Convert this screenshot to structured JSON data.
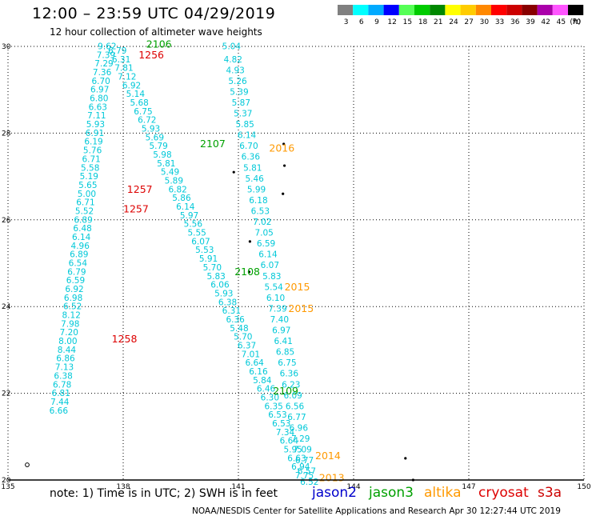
{
  "title": "12:00 – 23:59 UTC 04/29/2019",
  "subtitle": "12 hour collection of altimeter wave heights",
  "note": "note:  1) Time is in UTC; 2) SWH is in feet",
  "credit": "NOAA/NESDIS Center for Satellite Applications and Research    Apr 30 12:27:44 UTC 2019",
  "legend": {
    "unit": "(ft)",
    "bins": [
      {
        "label": "3",
        "color": "#808080"
      },
      {
        "label": "6",
        "color": "#00ffff"
      },
      {
        "label": "9",
        "color": "#00aaff"
      },
      {
        "label": "12",
        "color": "#0000ff"
      },
      {
        "label": "15",
        "color": "#55ff55"
      },
      {
        "label": "18",
        "color": "#00cc00"
      },
      {
        "label": "21",
        "color": "#008800"
      },
      {
        "label": "24",
        "color": "#ffff00"
      },
      {
        "label": "27",
        "color": "#ffcc00"
      },
      {
        "label": "30",
        "color": "#ff8800"
      },
      {
        "label": "33",
        "color": "#ff0000"
      },
      {
        "label": "36",
        "color": "#cc0000"
      },
      {
        "label": "39",
        "color": "#880000"
      },
      {
        "label": "42",
        "color": "#aa00aa"
      },
      {
        "label": "45",
        "color": "#ff55ff"
      },
      {
        "label": "70",
        "color": "#000000"
      }
    ]
  },
  "satellites": [
    {
      "name": "jason2",
      "color": "#0000cc"
    },
    {
      "name": "jason3",
      "color": "#00a000"
    },
    {
      "name": "altika",
      "color": "#ff9900"
    },
    {
      "name": "cryosat",
      "color": "#dd0000"
    },
    {
      "name": "s3a",
      "color": "#cc0000"
    }
  ],
  "axes": {
    "lon_ticks": [
      "135",
      "138",
      "141",
      "144",
      "147",
      "150"
    ],
    "lat_ticks": [
      "20",
      "22",
      "24",
      "26",
      "28",
      "30"
    ]
  },
  "track_labels": [
    {
      "text": "2106",
      "lon": 138.6,
      "lat": 30.05,
      "sat": "jason3"
    },
    {
      "text": "1256",
      "lon": 138.4,
      "lat": 29.8,
      "sat": "cryosat"
    },
    {
      "text": "2107",
      "lon": 140.0,
      "lat": 27.75,
      "sat": "jason3"
    },
    {
      "text": "2016",
      "lon": 141.8,
      "lat": 27.65,
      "sat": "altika"
    },
    {
      "text": "1257",
      "lon": 138.1,
      "lat": 26.7,
      "sat": "cryosat"
    },
    {
      "text": "1257",
      "lon": 138.0,
      "lat": 26.25,
      "sat": "cryosat"
    },
    {
      "text": "2108",
      "lon": 140.9,
      "lat": 24.8,
      "sat": "jason3"
    },
    {
      "text": "2015",
      "lon": 142.2,
      "lat": 24.45,
      "sat": "altika"
    },
    {
      "text": "2015",
      "lon": 142.3,
      "lat": 23.95,
      "sat": "altika"
    },
    {
      "text": "1258",
      "lon": 137.7,
      "lat": 23.25,
      "sat": "cryosat"
    },
    {
      "text": "2109",
      "lon": 141.9,
      "lat": 22.05,
      "sat": "jason3"
    },
    {
      "text": "2014",
      "lon": 143.0,
      "lat": 20.55,
      "sat": "altika"
    },
    {
      "text": "2013",
      "lon": 143.1,
      "lat": 20.05,
      "sat": "altika"
    }
  ],
  "tracks": [
    {
      "name": "track-a",
      "points": [
        {
          "lon": 137.58,
          "lat": 30.0,
          "swh": "9.62"
        },
        {
          "lon": 137.55,
          "lat": 29.8,
          "swh": "7.39"
        },
        {
          "lon": 137.5,
          "lat": 29.6,
          "swh": "7.29"
        },
        {
          "lon": 137.45,
          "lat": 29.4,
          "swh": "7.36"
        },
        {
          "lon": 137.42,
          "lat": 29.2,
          "swh": "6.70"
        },
        {
          "lon": 137.39,
          "lat": 29.0,
          "swh": "6.97"
        },
        {
          "lon": 137.37,
          "lat": 28.8,
          "swh": "6.80"
        },
        {
          "lon": 137.34,
          "lat": 28.6,
          "swh": "6.63"
        },
        {
          "lon": 137.31,
          "lat": 28.4,
          "swh": "7.11"
        },
        {
          "lon": 137.28,
          "lat": 28.2,
          "swh": "5.93"
        },
        {
          "lon": 137.26,
          "lat": 28.0,
          "swh": "6.91"
        },
        {
          "lon": 137.23,
          "lat": 27.8,
          "swh": "6.19"
        },
        {
          "lon": 137.2,
          "lat": 27.6,
          "swh": "5.76"
        },
        {
          "lon": 137.17,
          "lat": 27.4,
          "swh": "6.71"
        },
        {
          "lon": 137.14,
          "lat": 27.2,
          "swh": "5.58"
        },
        {
          "lon": 137.11,
          "lat": 27.0,
          "swh": "5.19"
        },
        {
          "lon": 137.08,
          "lat": 26.8,
          "swh": "5.65"
        },
        {
          "lon": 137.05,
          "lat": 26.6,
          "swh": "5.00"
        },
        {
          "lon": 137.02,
          "lat": 26.4,
          "swh": "6.71"
        },
        {
          "lon": 136.99,
          "lat": 26.2,
          "swh": "5.52"
        },
        {
          "lon": 136.96,
          "lat": 26.0,
          "swh": "6.89"
        },
        {
          "lon": 136.94,
          "lat": 25.8,
          "swh": "6.48"
        },
        {
          "lon": 136.91,
          "lat": 25.6,
          "swh": "6.14"
        },
        {
          "lon": 136.88,
          "lat": 25.4,
          "swh": "4.96"
        },
        {
          "lon": 136.85,
          "lat": 25.2,
          "swh": "6.89"
        },
        {
          "lon": 136.82,
          "lat": 25.0,
          "swh": "6.54"
        },
        {
          "lon": 136.79,
          "lat": 24.8,
          "swh": "6.79"
        },
        {
          "lon": 136.76,
          "lat": 24.6,
          "swh": "6.59"
        },
        {
          "lon": 136.73,
          "lat": 24.4,
          "swh": "6.92"
        },
        {
          "lon": 136.7,
          "lat": 24.2,
          "swh": "6.98"
        },
        {
          "lon": 136.68,
          "lat": 24.0,
          "swh": "6.52"
        },
        {
          "lon": 136.65,
          "lat": 23.8,
          "swh": "8.12"
        },
        {
          "lon": 136.62,
          "lat": 23.6,
          "swh": "7.98"
        },
        {
          "lon": 136.59,
          "lat": 23.4,
          "swh": "7.20"
        },
        {
          "lon": 136.56,
          "lat": 23.2,
          "swh": "8.00"
        },
        {
          "lon": 136.53,
          "lat": 23.0,
          "swh": "8.44"
        },
        {
          "lon": 136.5,
          "lat": 22.8,
          "swh": "6.86"
        },
        {
          "lon": 136.47,
          "lat": 22.6,
          "swh": "7.13"
        },
        {
          "lon": 136.44,
          "lat": 22.4,
          "swh": "6.38"
        },
        {
          "lon": 136.41,
          "lat": 22.2,
          "swh": "6.78"
        },
        {
          "lon": 136.38,
          "lat": 22.0,
          "swh": "6.81"
        },
        {
          "lon": 136.35,
          "lat": 21.8,
          "swh": "7.44"
        },
        {
          "lon": 136.32,
          "lat": 21.6,
          "swh": "6.66"
        }
      ]
    },
    {
      "name": "track-b",
      "points": [
        {
          "lon": 137.85,
          "lat": 29.9,
          "swh": "6.79"
        },
        {
          "lon": 137.95,
          "lat": 29.7,
          "swh": "6.31"
        },
        {
          "lon": 138.02,
          "lat": 29.5,
          "swh": "7.81"
        },
        {
          "lon": 138.1,
          "lat": 29.3,
          "swh": "7.12"
        },
        {
          "lon": 138.22,
          "lat": 29.1,
          "swh": "6.92"
        },
        {
          "lon": 138.32,
          "lat": 28.9,
          "swh": "5.14"
        },
        {
          "lon": 138.42,
          "lat": 28.7,
          "swh": "5.68"
        },
        {
          "lon": 138.52,
          "lat": 28.5,
          "swh": "6.75"
        },
        {
          "lon": 138.62,
          "lat": 28.3,
          "swh": "6.72"
        },
        {
          "lon": 138.72,
          "lat": 28.1,
          "swh": "5.93"
        },
        {
          "lon": 138.82,
          "lat": 27.9,
          "swh": "5.69"
        },
        {
          "lon": 138.92,
          "lat": 27.7,
          "swh": "5.79"
        },
        {
          "lon": 139.02,
          "lat": 27.5,
          "swh": "5.98"
        },
        {
          "lon": 139.12,
          "lat": 27.3,
          "swh": "5.81"
        },
        {
          "lon": 139.22,
          "lat": 27.1,
          "swh": "5.49"
        },
        {
          "lon": 139.32,
          "lat": 26.9,
          "swh": "5.89"
        },
        {
          "lon": 139.42,
          "lat": 26.7,
          "swh": "6.82"
        },
        {
          "lon": 139.52,
          "lat": 26.5,
          "swh": "5.86"
        },
        {
          "lon": 139.62,
          "lat": 26.3,
          "swh": "6.14"
        },
        {
          "lon": 139.72,
          "lat": 26.1,
          "swh": "5.97"
        },
        {
          "lon": 139.82,
          "lat": 25.9,
          "swh": "5.56"
        },
        {
          "lon": 139.92,
          "lat": 25.7,
          "swh": "5.55"
        },
        {
          "lon": 140.02,
          "lat": 25.5,
          "swh": "6.07"
        },
        {
          "lon": 140.12,
          "lat": 25.3,
          "swh": "5.53"
        },
        {
          "lon": 140.22,
          "lat": 25.1,
          "swh": "5.91"
        },
        {
          "lon": 140.32,
          "lat": 24.9,
          "swh": "5.70"
        },
        {
          "lon": 140.42,
          "lat": 24.7,
          "swh": "5.83"
        },
        {
          "lon": 140.52,
          "lat": 24.5,
          "swh": "6.06"
        },
        {
          "lon": 140.62,
          "lat": 24.3,
          "swh": "5.93"
        },
        {
          "lon": 140.72,
          "lat": 24.1,
          "swh": "6.38"
        },
        {
          "lon": 140.82,
          "lat": 23.9,
          "swh": "6.31"
        },
        {
          "lon": 140.92,
          "lat": 23.7,
          "swh": "6.36"
        },
        {
          "lon": 141.02,
          "lat": 23.5,
          "swh": "5.48"
        },
        {
          "lon": 141.12,
          "lat": 23.3,
          "swh": "5.70"
        },
        {
          "lon": 141.22,
          "lat": 23.1,
          "swh": "6.37"
        },
        {
          "lon": 141.32,
          "lat": 22.9,
          "swh": "7.01"
        },
        {
          "lon": 141.42,
          "lat": 22.7,
          "swh": "6.64"
        },
        {
          "lon": 141.52,
          "lat": 22.5,
          "swh": "6.16"
        },
        {
          "lon": 141.62,
          "lat": 22.3,
          "swh": "5.84"
        },
        {
          "lon": 141.72,
          "lat": 22.1,
          "swh": "6.46"
        },
        {
          "lon": 141.82,
          "lat": 21.9,
          "swh": "6.30"
        },
        {
          "lon": 141.92,
          "lat": 21.7,
          "swh": "6.35"
        },
        {
          "lon": 142.02,
          "lat": 21.5,
          "swh": "6.53"
        },
        {
          "lon": 142.12,
          "lat": 21.3,
          "swh": "6.53"
        },
        {
          "lon": 142.22,
          "lat": 21.1,
          "swh": "7.34"
        },
        {
          "lon": 142.32,
          "lat": 20.9,
          "swh": "6.64"
        },
        {
          "lon": 142.42,
          "lat": 20.7,
          "swh": "5.95"
        },
        {
          "lon": 142.52,
          "lat": 20.5,
          "swh": "6.63"
        },
        {
          "lon": 142.62,
          "lat": 20.3,
          "swh": "6.94"
        },
        {
          "lon": 142.72,
          "lat": 20.1,
          "swh": "7.75"
        }
      ]
    },
    {
      "name": "track-c",
      "points": [
        {
          "lon": 140.82,
          "lat": 30.0,
          "swh": "5.04"
        },
        {
          "lon": 140.86,
          "lat": 29.7,
          "swh": "4.82"
        },
        {
          "lon": 140.92,
          "lat": 29.45,
          "swh": "4.93"
        },
        {
          "lon": 140.98,
          "lat": 29.2,
          "swh": "5.26"
        },
        {
          "lon": 141.02,
          "lat": 28.95,
          "swh": "5.39"
        },
        {
          "lon": 141.07,
          "lat": 28.7,
          "swh": "5.87"
        },
        {
          "lon": 141.12,
          "lat": 28.45,
          "swh": "5.37"
        },
        {
          "lon": 141.17,
          "lat": 28.2,
          "swh": "5.85"
        },
        {
          "lon": 141.22,
          "lat": 27.95,
          "swh": "6.14"
        },
        {
          "lon": 141.27,
          "lat": 27.7,
          "swh": "6.70"
        },
        {
          "lon": 141.32,
          "lat": 27.45,
          "swh": "6.36"
        },
        {
          "lon": 141.37,
          "lat": 27.2,
          "swh": "5.81"
        },
        {
          "lon": 141.42,
          "lat": 26.95,
          "swh": "5.46"
        },
        {
          "lon": 141.47,
          "lat": 26.7,
          "swh": "5.99"
        },
        {
          "lon": 141.52,
          "lat": 26.45,
          "swh": "6.18"
        },
        {
          "lon": 141.57,
          "lat": 26.2,
          "swh": "6.53"
        },
        {
          "lon": 141.62,
          "lat": 25.95,
          "swh": "7.02"
        },
        {
          "lon": 141.67,
          "lat": 25.7,
          "swh": "7.05"
        },
        {
          "lon": 141.72,
          "lat": 25.45,
          "swh": "6.59"
        },
        {
          "lon": 141.77,
          "lat": 25.2,
          "swh": "6.14"
        },
        {
          "lon": 141.82,
          "lat": 24.95,
          "swh": "6.07"
        },
        {
          "lon": 141.87,
          "lat": 24.7,
          "swh": "5.83"
        },
        {
          "lon": 141.92,
          "lat": 24.45,
          "swh": "5.54"
        },
        {
          "lon": 141.97,
          "lat": 24.2,
          "swh": "6.10"
        },
        {
          "lon": 142.02,
          "lat": 23.95,
          "swh": "7.39"
        },
        {
          "lon": 142.07,
          "lat": 23.7,
          "swh": "7.40"
        },
        {
          "lon": 142.12,
          "lat": 23.45,
          "swh": "6.97"
        },
        {
          "lon": 142.17,
          "lat": 23.2,
          "swh": "6.41"
        },
        {
          "lon": 142.22,
          "lat": 22.95,
          "swh": "6.85"
        },
        {
          "lon": 142.27,
          "lat": 22.7,
          "swh": "6.75"
        },
        {
          "lon": 142.32,
          "lat": 22.45,
          "swh": "6.36"
        },
        {
          "lon": 142.37,
          "lat": 22.2,
          "swh": "6.23"
        },
        {
          "lon": 142.42,
          "lat": 21.95,
          "swh": "6.09"
        },
        {
          "lon": 142.47,
          "lat": 21.7,
          "swh": "6.56"
        },
        {
          "lon": 142.52,
          "lat": 21.45,
          "swh": "6.77"
        },
        {
          "lon": 142.57,
          "lat": 21.2,
          "swh": "6.96"
        },
        {
          "lon": 142.62,
          "lat": 20.95,
          "swh": "7.29"
        },
        {
          "lon": 142.67,
          "lat": 20.7,
          "swh": "7.09"
        },
        {
          "lon": 142.72,
          "lat": 20.45,
          "swh": "6.77"
        },
        {
          "lon": 142.78,
          "lat": 20.2,
          "swh": "6.57"
        },
        {
          "lon": 142.85,
          "lat": 19.95,
          "swh": "6.52"
        }
      ]
    }
  ],
  "islands": [
    {
      "lon": 142.18,
      "lat": 27.75
    },
    {
      "lon": 142.2,
      "lat": 27.25
    },
    {
      "lon": 142.16,
      "lat": 26.6
    },
    {
      "lon": 140.88,
      "lat": 27.1
    },
    {
      "lon": 141.3,
      "lat": 25.5
    },
    {
      "lon": 141.28,
      "lat": 24.8
    },
    {
      "lon": 145.35,
      "lat": 20.5
    },
    {
      "lon": 145.55,
      "lat": 20.0
    }
  ],
  "circle_markers": [
    {
      "lon": 135.5,
      "lat": 20.35
    }
  ]
}
